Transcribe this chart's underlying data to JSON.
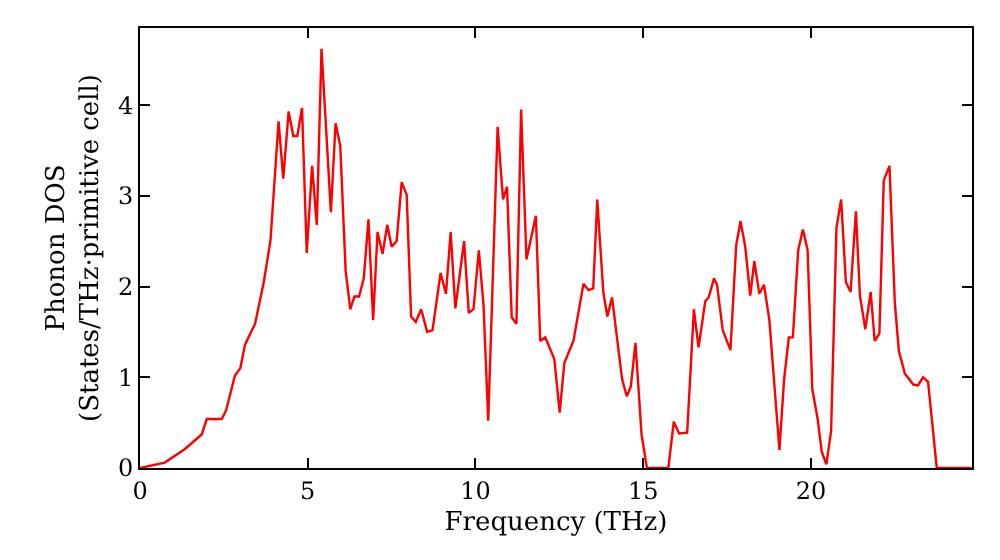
{
  "chart_data": {
    "type": "line",
    "xlabel": "Frequency (THz)",
    "ylabel": "Phonon DOS\n(States/THz·primitive cell)",
    "x": [
      0,
      0.74,
      1.34,
      1.84,
      1.99,
      2.44,
      2.57,
      2.83,
      2.99,
      3.13,
      3.43,
      3.69,
      3.89,
      4.13,
      4.27,
      4.43,
      4.57,
      4.69,
      4.83,
      4.97,
      5.13,
      5.27,
      5.41,
      5.69,
      5.83,
      5.97,
      6.13,
      6.27,
      6.39,
      6.53,
      6.67,
      6.81,
      6.95,
      7.08,
      7.23,
      7.37,
      7.5,
      7.65,
      7.8,
      7.95,
      8.08,
      8.22,
      8.38,
      8.56,
      8.72,
      8.96,
      9.12,
      9.26,
      9.4,
      9.66,
      9.8,
      9.94,
      10.1,
      10.24,
      10.38,
      10.66,
      10.82,
      10.94,
      11.08,
      11.22,
      11.36,
      11.52,
      11.8,
      11.93,
      12.08,
      12.35,
      12.51,
      12.65,
      12.92,
      13.22,
      13.37,
      13.51,
      13.63,
      13.81,
      13.93,
      14.07,
      14.37,
      14.51,
      14.63,
      14.77,
      14.95,
      15.11,
      15.75,
      15.91,
      16.07,
      16.31,
      16.51,
      16.65,
      16.85,
      16.95,
      17.11,
      17.2,
      17.37,
      17.6,
      17.77,
      17.9,
      18.04,
      18.19,
      18.31,
      18.46,
      18.6,
      18.76,
      19.06,
      19.2,
      19.34,
      19.46,
      19.62,
      19.76,
      19.9,
      20.04,
      20.2,
      20.32,
      20.46,
      20.6,
      20.76,
      20.9,
      21.04,
      21.18,
      21.34,
      21.46,
      21.62,
      21.78,
      21.9,
      22.04,
      22.17,
      22.34,
      22.5,
      22.62,
      22.8,
      23.05,
      23.19,
      23.34,
      23.49,
      23.75,
      24.79
    ],
    "series": [
      {
        "color": "#ff0000",
        "values": [
          0,
          0.06,
          0.21,
          0.37,
          0.54,
          0.54,
          0.64,
          1.02,
          1.1,
          1.36,
          1.59,
          2.05,
          2.51,
          3.82,
          3.19,
          3.93,
          3.66,
          3.66,
          3.97,
          2.37,
          3.33,
          2.68,
          4.62,
          2.82,
          3.8,
          3.55,
          2.17,
          1.75,
          1.89,
          1.89,
          2.09,
          2.74,
          1.63,
          2.6,
          2.36,
          2.68,
          2.44,
          2.5,
          3.15,
          3.01,
          1.67,
          1.61,
          1.75,
          1.5,
          1.52,
          2.15,
          1.92,
          2.6,
          1.76,
          2.5,
          1.71,
          1.75,
          2.4,
          1.79,
          0.52,
          3.76,
          2.96,
          3.1,
          1.66,
          1.59,
          3.95,
          2.3,
          2.78,
          1.4,
          1.44,
          1.2,
          0.61,
          1.16,
          1.4,
          2.03,
          1.96,
          1.98,
          2.96,
          1.94,
          1.67,
          1.88,
          0.98,
          0.79,
          0.9,
          1.38,
          0.37,
          0,
          0,
          0.51,
          0.38,
          0.39,
          1.75,
          1.33,
          1.84,
          1.88,
          2.09,
          2.02,
          1.52,
          1.3,
          2.45,
          2.72,
          2.44,
          1.9,
          2.28,
          1.92,
          2.02,
          1.63,
          0.2,
          0.98,
          1.44,
          1.44,
          2.4,
          2.63,
          2.4,
          0.87,
          0.54,
          0.18,
          0.04,
          0.41,
          2.65,
          2.96,
          2.05,
          1.94,
          2.83,
          1.9,
          1.53,
          1.94,
          1.4,
          1.48,
          3.17,
          3.33,
          1.82,
          1.29,
          1.04,
          0.92,
          0.91,
          1.0,
          0.95,
          0,
          0
        ]
      }
    ],
    "xlim": [
      0,
      24.8
    ],
    "xticks": [
      0,
      5,
      10,
      15,
      20
    ],
    "ylim": [
      0,
      4.85
    ],
    "yticks": [
      0,
      1,
      2,
      3,
      4
    ],
    "legend": false,
    "marker": "none",
    "line_style": "solid"
  }
}
